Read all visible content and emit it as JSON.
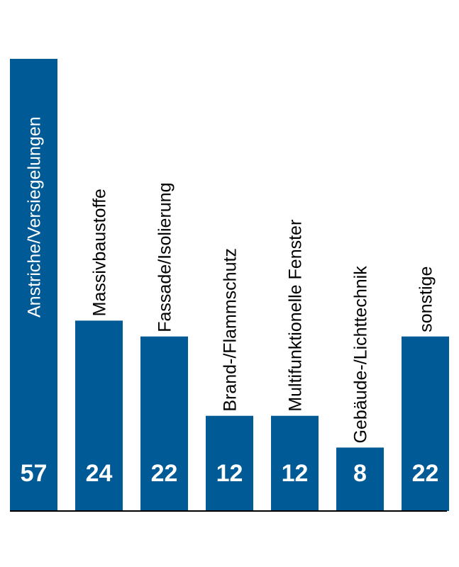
{
  "chart_data": {
    "type": "bar",
    "categories": [
      "Anstriche/Versiegelungen",
      "Massivbaustoffe",
      "Fassade/Isolierung",
      "Brand-/Flammschutz",
      "Multifunktionelle Fenster",
      "Gebäude-/Lichttechnik",
      "sonstige"
    ],
    "values": [
      57,
      24,
      22,
      12,
      12,
      8,
      22
    ],
    "value_labels": [
      "57",
      "24",
      "22",
      "12",
      "12",
      "8",
      "22"
    ],
    "ylim": [
      0,
      57
    ],
    "grid": false,
    "bar_color": "#005a96",
    "label_inside_color": "#ffffff",
    "label_outside_color": "#000000",
    "axis_color": "#000000"
  }
}
